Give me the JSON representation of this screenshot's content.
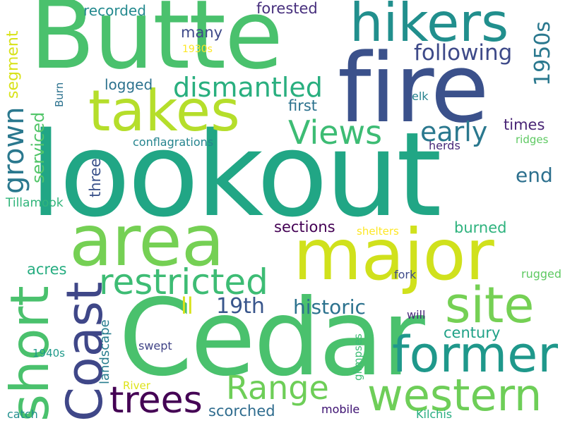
{
  "words": [
    {
      "text": "lookout",
      "color": "#21a685"
    },
    {
      "text": "Cedar",
      "color": "#4ac16d"
    },
    {
      "text": "fire",
      "color": "#3b518b"
    },
    {
      "text": "Butte",
      "color": "#4ac16d"
    },
    {
      "text": "major",
      "color": "#d0e11c"
    },
    {
      "text": "area",
      "color": "#75d054"
    },
    {
      "text": "takes",
      "color": "#b5de2b"
    },
    {
      "text": "hikers",
      "color": "#218f8d"
    },
    {
      "text": "site",
      "color": "#75d054"
    },
    {
      "text": "former",
      "color": "#1f988b"
    },
    {
      "text": "western",
      "color": "#6ece58"
    },
    {
      "text": "Coast",
      "color": "#3f4788"
    },
    {
      "text": "short",
      "color": "#4ac16d"
    },
    {
      "text": "restricted",
      "color": "#3dbc74"
    },
    {
      "text": "Range",
      "color": "#6ece58"
    },
    {
      "text": "Views",
      "color": "#3dbc74"
    },
    {
      "text": "trees",
      "color": "#440154"
    },
    {
      "text": "dismantled",
      "color": "#29af7f"
    },
    {
      "text": "following",
      "color": "#3e4a89"
    },
    {
      "text": "early",
      "color": "#2a788e"
    },
    {
      "text": "grown",
      "color": "#2a788e"
    },
    {
      "text": "1950s",
      "color": "#2a788e"
    },
    {
      "text": "historic",
      "color": "#2c728e"
    },
    {
      "text": "19th",
      "color": "#39568c"
    },
    {
      "text": "ll",
      "color": "#d8e219"
    },
    {
      "text": "end",
      "color": "#2d708e"
    },
    {
      "text": "serviced",
      "color": "#52c569"
    },
    {
      "text": "segment",
      "color": "#d8e219"
    },
    {
      "text": "sections",
      "color": "#440154"
    },
    {
      "text": "scorched",
      "color": "#2f6c8e"
    },
    {
      "text": "century",
      "color": "#1fa187"
    },
    {
      "text": "burned",
      "color": "#2db27d"
    },
    {
      "text": "logged",
      "color": "#2c728e"
    },
    {
      "text": "many",
      "color": "#3e4989"
    },
    {
      "text": "recorded",
      "color": "#23898e"
    },
    {
      "text": "forested",
      "color": "#472f7d"
    },
    {
      "text": "first",
      "color": "#2c728e"
    },
    {
      "text": "times",
      "color": "#482475"
    },
    {
      "text": "three",
      "color": "#3b528b"
    },
    {
      "text": "acres",
      "color": "#27ad81"
    },
    {
      "text": "landscape",
      "color": "#287d8e"
    },
    {
      "text": "Tillamook",
      "color": "#31b57b"
    },
    {
      "text": "conflagrations",
      "color": "#25848e"
    },
    {
      "text": "1930s",
      "color": "#fde725"
    },
    {
      "text": "Burn",
      "color": "#2c728e"
    },
    {
      "text": "elk",
      "color": "#26828e"
    },
    {
      "text": "herds",
      "color": "#482979"
    },
    {
      "text": "ridges",
      "color": "#5ec962"
    },
    {
      "text": "shelters",
      "color": "#fde725"
    },
    {
      "text": "rugged",
      "color": "#5ec962"
    },
    {
      "text": "fork",
      "color": "#3e4a89"
    },
    {
      "text": "will",
      "color": "#482979"
    },
    {
      "text": "swept",
      "color": "#414487"
    },
    {
      "text": "1940s",
      "color": "#1f9a8a"
    },
    {
      "text": "River",
      "color": "#dde318"
    },
    {
      "text": "glimpses",
      "color": "#3dbc74"
    },
    {
      "text": "mobile",
      "color": "#3b0f70"
    },
    {
      "text": "catch",
      "color": "#218f8d"
    },
    {
      "text": "Kilchis",
      "color": "#27ad81"
    }
  ]
}
